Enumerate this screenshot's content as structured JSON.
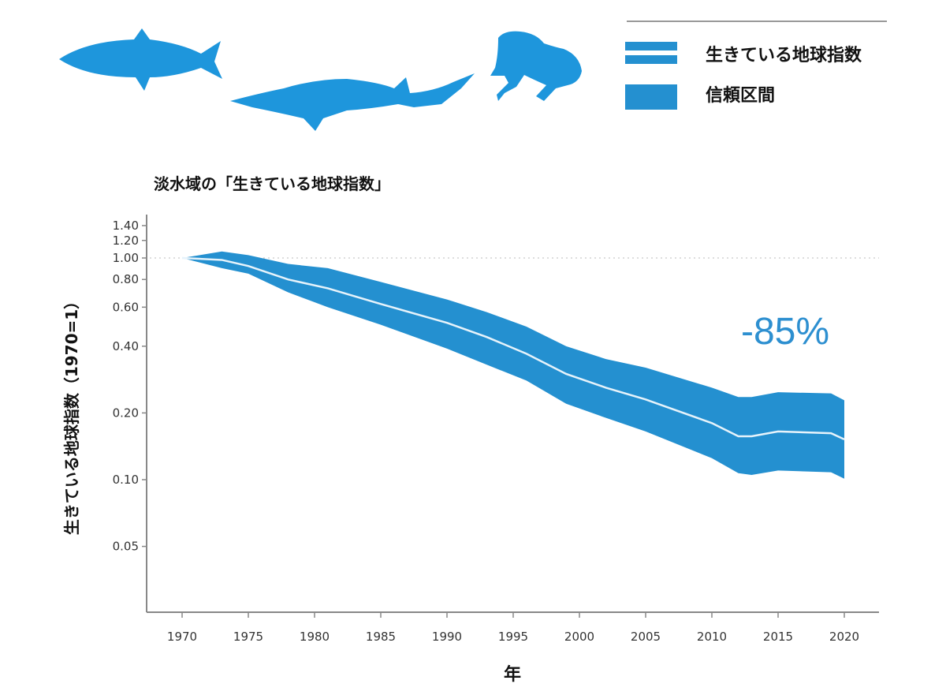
{
  "chart_data": {
    "type": "area",
    "title": "淡水域の「生きている地球指数」",
    "xlabel": "年",
    "ylabel": "生きている地球指数（1970=1）",
    "y_scale": "log",
    "ylim": [
      0.026,
      1.5
    ],
    "xlim": [
      1967,
      2022
    ],
    "x_ticks": [
      "1970",
      "1975",
      "1980",
      "1985",
      "1990",
      "1995",
      "2000",
      "2005",
      "2010",
      "2015",
      "2020"
    ],
    "y_ticks": [
      "1.40",
      "1.20",
      "1.00",
      "0.80",
      "0.60",
      "0.40",
      "0.20",
      "0.10",
      "0.05"
    ],
    "reference_line": 1.0,
    "annotation": "-85%",
    "legend": {
      "position": "top-right",
      "items": [
        "生きている地球指数",
        "信頼区間"
      ]
    },
    "colors": {
      "band": "#2490d0",
      "line": "#e6f3fb",
      "annotation": "#2d8fd0",
      "silhouettes": "#1e96dc"
    },
    "series": [
      {
        "name": "生きている地球指数",
        "x": [
          1970,
          1973,
          1975,
          1978,
          1981,
          1985,
          1990,
          1993,
          1996,
          1999,
          2002,
          2005,
          2010,
          2012,
          2013,
          2015,
          2019,
          2020
        ],
        "values": [
          1.0,
          0.98,
          0.92,
          0.8,
          0.73,
          0.62,
          0.51,
          0.44,
          0.37,
          0.3,
          0.26,
          0.23,
          0.18,
          0.157,
          0.157,
          0.165,
          0.162,
          0.152
        ]
      },
      {
        "name": "信頼区間",
        "x": [
          1970,
          1973,
          1975,
          1978,
          1981,
          1985,
          1990,
          1993,
          1996,
          1999,
          2002,
          2005,
          2010,
          2012,
          2013,
          2015,
          2019,
          2020
        ],
        "lower": [
          1.0,
          0.9,
          0.85,
          0.7,
          0.6,
          0.5,
          0.39,
          0.33,
          0.28,
          0.22,
          0.19,
          0.165,
          0.125,
          0.107,
          0.105,
          0.11,
          0.108,
          0.101
        ],
        "upper": [
          1.0,
          1.07,
          1.03,
          0.94,
          0.9,
          0.78,
          0.65,
          0.57,
          0.49,
          0.4,
          0.35,
          0.32,
          0.26,
          0.236,
          0.236,
          0.248,
          0.245,
          0.228
        ]
      }
    ]
  }
}
